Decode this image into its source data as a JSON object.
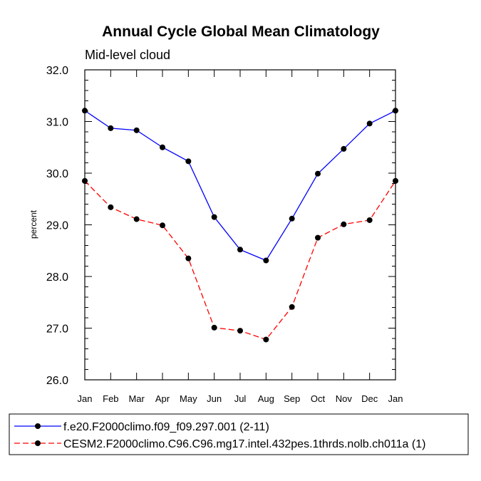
{
  "chart_data": {
    "type": "line",
    "title": "Annual Cycle Global Mean Climatology",
    "subtitle": "Mid-level cloud",
    "xlabel": "",
    "ylabel": "percent",
    "categories": [
      "Jan",
      "Feb",
      "Mar",
      "Apr",
      "May",
      "Jun",
      "Jul",
      "Aug",
      "Sep",
      "Oct",
      "Nov",
      "Dec",
      "Jan"
    ],
    "ylim": [
      26.0,
      32.0
    ],
    "yticks": [
      "26.0",
      "27.0",
      "28.0",
      "29.0",
      "30.0",
      "31.0",
      "32.0"
    ],
    "grid": false,
    "legend_position": "bottom",
    "series": [
      {
        "name": "f.e20.F2000climo.f09_f09.297.001 (2-11)",
        "color": "#0000ff",
        "dash": "solid",
        "values": [
          31.21,
          30.87,
          30.83,
          30.5,
          30.23,
          29.15,
          28.52,
          28.31,
          29.12,
          29.99,
          30.47,
          30.96,
          31.21
        ]
      },
      {
        "name": "CESM2.F2000climo.C96.C96.mg17.intel.432pes.1thrds.nolb.ch011a (1)",
        "color": "#ff0000",
        "dash": "dashed",
        "values": [
          29.85,
          29.34,
          29.11,
          28.99,
          28.35,
          27.01,
          26.95,
          26.78,
          27.41,
          28.75,
          29.01,
          29.09,
          29.85
        ]
      }
    ]
  }
}
